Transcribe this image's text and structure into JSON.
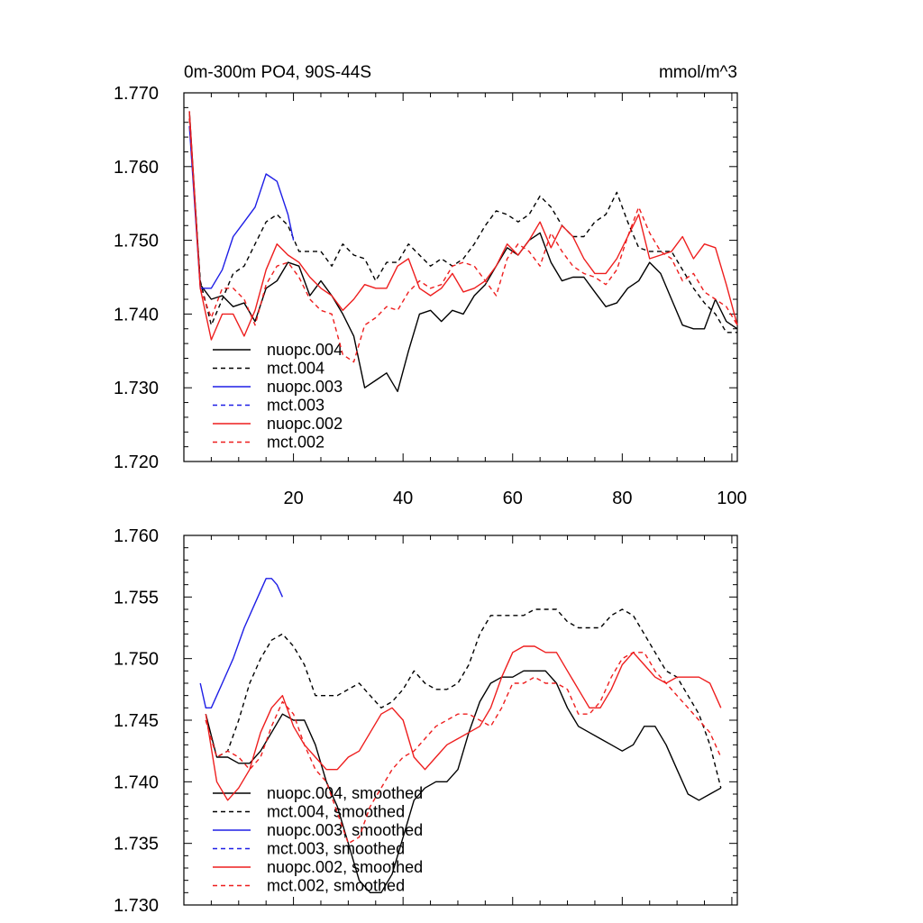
{
  "figure": {
    "title_left": "0m-300m PO4, 90S-44S",
    "title_right": "mmol/m^3"
  },
  "colors": {
    "nuopc.004": "#000000",
    "mct.004": "#000000",
    "nuopc.003": "#1e1ee6",
    "mct.003": "#1e1ee6",
    "nuopc.002": "#ee1e1e",
    "mct.002": "#ee1e1e"
  },
  "chart_data": [
    {
      "type": "line",
      "panel": "top",
      "title": "0m-300m PO4, 90S-44S",
      "units": "mmol/m^3",
      "xlabel": "",
      "ylabel": "",
      "xlim": [
        0,
        101
      ],
      "ylim": [
        1.72,
        1.77
      ],
      "xticks": [
        20,
        40,
        60,
        80,
        100
      ],
      "xtick_labels": [
        "20",
        "40",
        "60",
        "80",
        "100"
      ],
      "yticks": [
        1.72,
        1.73,
        1.74,
        1.75,
        1.76,
        1.77
      ],
      "ytick_labels": [
        "1.720",
        "1.730",
        "1.740",
        "1.750",
        "1.760",
        "1.770"
      ],
      "legend_position": "bottom-left",
      "series": [
        {
          "name": "nuopc.004",
          "style": "solid",
          "color_key": "nuopc.004",
          "x": [
            1,
            3,
            5,
            7,
            9,
            11,
            13,
            15,
            17,
            19,
            21,
            23,
            25,
            27,
            29,
            31,
            33,
            35,
            37,
            39,
            41,
            43,
            45,
            47,
            49,
            51,
            53,
            55,
            57,
            59,
            61,
            63,
            65,
            67,
            69,
            71,
            73,
            75,
            77,
            79,
            81,
            83,
            85,
            87,
            89,
            91,
            93,
            95,
            97,
            99,
            101
          ],
          "y": [
            1.7675,
            1.744,
            1.742,
            1.7425,
            1.741,
            1.7415,
            1.739,
            1.7435,
            1.7445,
            1.747,
            1.7465,
            1.7425,
            1.7445,
            1.7425,
            1.74,
            1.737,
            1.73,
            1.731,
            1.732,
            1.7295,
            1.735,
            1.74,
            1.7405,
            1.739,
            1.7405,
            1.74,
            1.7425,
            1.744,
            1.7465,
            1.749,
            1.748,
            1.75,
            1.751,
            1.747,
            1.7445,
            1.745,
            1.745,
            1.743,
            1.741,
            1.7415,
            1.7435,
            1.7445,
            1.747,
            1.7455,
            1.742,
            1.7385,
            1.738,
            1.738,
            1.742,
            1.739,
            1.738
          ]
        },
        {
          "name": "mct.004",
          "style": "dashed",
          "color_key": "mct.004",
          "x": [
            1,
            3,
            5,
            7,
            9,
            11,
            13,
            15,
            17,
            19,
            21,
            23,
            25,
            27,
            29,
            31,
            33,
            35,
            37,
            39,
            41,
            43,
            45,
            47,
            49,
            51,
            53,
            55,
            57,
            59,
            61,
            63,
            65,
            67,
            69,
            71,
            73,
            75,
            77,
            79,
            81,
            83,
            85,
            87,
            89,
            91,
            93,
            95,
            97,
            99,
            101
          ],
          "y": [
            1.7665,
            1.7445,
            1.7385,
            1.742,
            1.7455,
            1.7465,
            1.7495,
            1.7525,
            1.7535,
            1.752,
            1.7485,
            1.7485,
            1.7485,
            1.7465,
            1.7495,
            1.748,
            1.7475,
            1.7445,
            1.747,
            1.747,
            1.7495,
            1.748,
            1.7465,
            1.7475,
            1.7465,
            1.7475,
            1.7495,
            1.752,
            1.754,
            1.7535,
            1.7525,
            1.7535,
            1.756,
            1.7545,
            1.752,
            1.7505,
            1.7505,
            1.7525,
            1.7535,
            1.7565,
            1.7525,
            1.749,
            1.7485,
            1.7485,
            1.7485,
            1.746,
            1.7435,
            1.7415,
            1.74,
            1.7375,
            1.7375
          ]
        },
        {
          "name": "nuopc.003",
          "style": "solid",
          "color_key": "nuopc.003",
          "x": [
            1,
            3,
            5,
            7,
            9,
            11,
            13,
            15,
            17,
            19,
            20
          ],
          "y": [
            1.7655,
            1.7435,
            1.7435,
            1.746,
            1.7505,
            1.7525,
            1.7545,
            1.759,
            1.758,
            1.7535,
            1.75
          ]
        },
        {
          "name": "mct.003",
          "style": "dashed",
          "color_key": "mct.003",
          "x": [],
          "y": []
        },
        {
          "name": "nuopc.002",
          "style": "solid",
          "color_key": "nuopc.002",
          "x": [
            1,
            3,
            5,
            7,
            9,
            11,
            13,
            15,
            17,
            19,
            21,
            23,
            25,
            27,
            29,
            31,
            33,
            35,
            37,
            39,
            41,
            43,
            45,
            47,
            49,
            51,
            53,
            55,
            57,
            59,
            61,
            63,
            65,
            67,
            69,
            71,
            73,
            75,
            77,
            79,
            81,
            83,
            85,
            87,
            89,
            91,
            93,
            95,
            97,
            99,
            101
          ],
          "y": [
            1.7675,
            1.7435,
            1.7365,
            1.74,
            1.74,
            1.737,
            1.7405,
            1.746,
            1.7495,
            1.748,
            1.747,
            1.745,
            1.7435,
            1.7425,
            1.7405,
            1.742,
            1.744,
            1.7435,
            1.7435,
            1.7465,
            1.7475,
            1.7435,
            1.7425,
            1.7435,
            1.7455,
            1.743,
            1.7435,
            1.7445,
            1.7465,
            1.7495,
            1.748,
            1.75,
            1.7525,
            1.749,
            1.752,
            1.7505,
            1.7475,
            1.7455,
            1.7455,
            1.7475,
            1.7505,
            1.7535,
            1.7475,
            1.748,
            1.7485,
            1.7505,
            1.7475,
            1.7495,
            1.749,
            1.744,
            1.7385
          ]
        },
        {
          "name": "mct.002",
          "style": "dashed",
          "color_key": "mct.002",
          "x": [
            1,
            3,
            5,
            7,
            9,
            11,
            13,
            15,
            17,
            19,
            21,
            23,
            25,
            27,
            29,
            31,
            33,
            35,
            37,
            39,
            41,
            43,
            45,
            47,
            49,
            51,
            53,
            55,
            57,
            59,
            61,
            63,
            65,
            67,
            69,
            71,
            73,
            75,
            77,
            79,
            81,
            83,
            85,
            87,
            89,
            91,
            93,
            95,
            97,
            99,
            101
          ],
          "y": [
            1.7665,
            1.7435,
            1.7395,
            1.7435,
            1.7435,
            1.742,
            1.7385,
            1.744,
            1.7465,
            1.747,
            1.745,
            1.742,
            1.7405,
            1.74,
            1.7345,
            1.7335,
            1.7385,
            1.7395,
            1.741,
            1.7405,
            1.743,
            1.7445,
            1.7435,
            1.744,
            1.7465,
            1.747,
            1.7465,
            1.7445,
            1.7425,
            1.7475,
            1.7495,
            1.7485,
            1.7465,
            1.751,
            1.7485,
            1.7465,
            1.7455,
            1.745,
            1.744,
            1.746,
            1.7505,
            1.7545,
            1.751,
            1.7485,
            1.7475,
            1.7445,
            1.7455,
            1.743,
            1.742,
            1.741,
            1.7385
          ]
        }
      ]
    },
    {
      "type": "line",
      "panel": "bottom",
      "title": "",
      "xlabel": "",
      "ylabel": "",
      "xlim": [
        0,
        101
      ],
      "ylim": [
        1.73,
        1.76
      ],
      "xticks": [
        20,
        40,
        60,
        80,
        100
      ],
      "xtick_labels": [],
      "yticks": [
        1.73,
        1.735,
        1.74,
        1.745,
        1.75,
        1.755,
        1.76
      ],
      "ytick_labels": [
        "1.730",
        "1.735",
        "1.740",
        "1.745",
        "1.750",
        "1.755",
        "1.760"
      ],
      "legend_position": "bottom-left",
      "series": [
        {
          "name": "nuopc.004, smoothed",
          "style": "solid",
          "color_key": "nuopc.004",
          "x": [
            4,
            6,
            8,
            10,
            12,
            14,
            16,
            18,
            20,
            22,
            24,
            26,
            28,
            30,
            32,
            34,
            36,
            38,
            40,
            42,
            44,
            46,
            48,
            50,
            52,
            54,
            56,
            58,
            60,
            62,
            64,
            66,
            68,
            70,
            72,
            74,
            76,
            78,
            80,
            82,
            84,
            86,
            88,
            90,
            92,
            94,
            96,
            98
          ],
          "y": [
            1.7455,
            1.742,
            1.742,
            1.7415,
            1.7415,
            1.7425,
            1.744,
            1.7455,
            1.745,
            1.745,
            1.743,
            1.74,
            1.738,
            1.735,
            1.732,
            1.731,
            1.731,
            1.7325,
            1.7355,
            1.7385,
            1.7395,
            1.74,
            1.74,
            1.741,
            1.744,
            1.7465,
            1.748,
            1.7485,
            1.7485,
            1.749,
            1.749,
            1.749,
            1.748,
            1.746,
            1.7445,
            1.744,
            1.7435,
            1.743,
            1.7425,
            1.743,
            1.7445,
            1.7445,
            1.743,
            1.741,
            1.739,
            1.7385,
            1.739,
            1.7395
          ]
        },
        {
          "name": "mct.004, smoothed",
          "style": "dashed",
          "color_key": "mct.004",
          "x": [
            4,
            6,
            8,
            10,
            12,
            14,
            16,
            18,
            20,
            22,
            24,
            26,
            28,
            30,
            32,
            34,
            36,
            38,
            40,
            42,
            44,
            46,
            48,
            50,
            52,
            54,
            56,
            58,
            60,
            62,
            64,
            66,
            68,
            70,
            72,
            74,
            76,
            78,
            80,
            82,
            84,
            86,
            88,
            90,
            92,
            94,
            96,
            98
          ],
          "y": [
            1.745,
            1.742,
            1.7425,
            1.745,
            1.748,
            1.75,
            1.7515,
            1.752,
            1.751,
            1.7495,
            1.747,
            1.747,
            1.747,
            1.7475,
            1.748,
            1.747,
            1.746,
            1.7465,
            1.7475,
            1.749,
            1.748,
            1.7475,
            1.7475,
            1.748,
            1.7495,
            1.752,
            1.7535,
            1.7535,
            1.7535,
            1.7535,
            1.754,
            1.754,
            1.754,
            1.753,
            1.7525,
            1.7525,
            1.7525,
            1.7535,
            1.754,
            1.7535,
            1.752,
            1.7505,
            1.749,
            1.7485,
            1.747,
            1.7455,
            1.743,
            1.7395
          ]
        },
        {
          "name": "nuopc.003, smoothed",
          "style": "solid",
          "color_key": "nuopc.003",
          "x": [
            3,
            4,
            5,
            7,
            9,
            11,
            13,
            15,
            16,
            17,
            18
          ],
          "y": [
            1.748,
            1.746,
            1.746,
            1.748,
            1.75,
            1.7525,
            1.7545,
            1.7565,
            1.7565,
            1.756,
            1.755
          ]
        },
        {
          "name": "mct.003, smoothed",
          "style": "dashed",
          "color_key": "mct.003",
          "x": [],
          "y": []
        },
        {
          "name": "nuopc.002, smoothed",
          "style": "solid",
          "color_key": "nuopc.002",
          "x": [
            4,
            6,
            8,
            10,
            12,
            14,
            16,
            18,
            20,
            22,
            24,
            26,
            28,
            30,
            32,
            34,
            36,
            38,
            40,
            42,
            44,
            46,
            48,
            50,
            52,
            54,
            56,
            58,
            60,
            62,
            64,
            66,
            68,
            70,
            72,
            74,
            76,
            78,
            80,
            82,
            84,
            86,
            88,
            90,
            92,
            94,
            96,
            98
          ],
          "y": [
            1.7455,
            1.74,
            1.7385,
            1.7395,
            1.741,
            1.744,
            1.746,
            1.747,
            1.7445,
            1.743,
            1.742,
            1.741,
            1.741,
            1.742,
            1.7425,
            1.744,
            1.7455,
            1.746,
            1.745,
            1.742,
            1.741,
            1.742,
            1.743,
            1.7435,
            1.744,
            1.7445,
            1.746,
            1.7485,
            1.7505,
            1.751,
            1.751,
            1.7505,
            1.7505,
            1.749,
            1.7475,
            1.746,
            1.746,
            1.7475,
            1.7495,
            1.7505,
            1.7495,
            1.7485,
            1.748,
            1.7485,
            1.7485,
            1.7485,
            1.748,
            1.746
          ]
        },
        {
          "name": "mct.002, smoothed",
          "style": "dashed",
          "color_key": "mct.002",
          "x": [
            4,
            6,
            8,
            10,
            12,
            14,
            16,
            18,
            20,
            22,
            24,
            26,
            28,
            30,
            32,
            34,
            36,
            38,
            40,
            42,
            44,
            46,
            48,
            50,
            52,
            54,
            56,
            58,
            60,
            62,
            64,
            66,
            68,
            70,
            72,
            74,
            76,
            78,
            80,
            82,
            84,
            86,
            88,
            90,
            92,
            94,
            96,
            98
          ],
          "y": [
            1.745,
            1.742,
            1.7425,
            1.742,
            1.741,
            1.742,
            1.7445,
            1.7465,
            1.7455,
            1.743,
            1.741,
            1.74,
            1.7375,
            1.735,
            1.7355,
            1.738,
            1.7395,
            1.741,
            1.742,
            1.7425,
            1.7435,
            1.7445,
            1.745,
            1.7455,
            1.7455,
            1.745,
            1.7445,
            1.746,
            1.748,
            1.748,
            1.7485,
            1.748,
            1.748,
            1.7475,
            1.7455,
            1.7455,
            1.7465,
            1.7485,
            1.75,
            1.7505,
            1.7505,
            1.749,
            1.748,
            1.747,
            1.746,
            1.745,
            1.744,
            1.742
          ]
        }
      ]
    }
  ]
}
